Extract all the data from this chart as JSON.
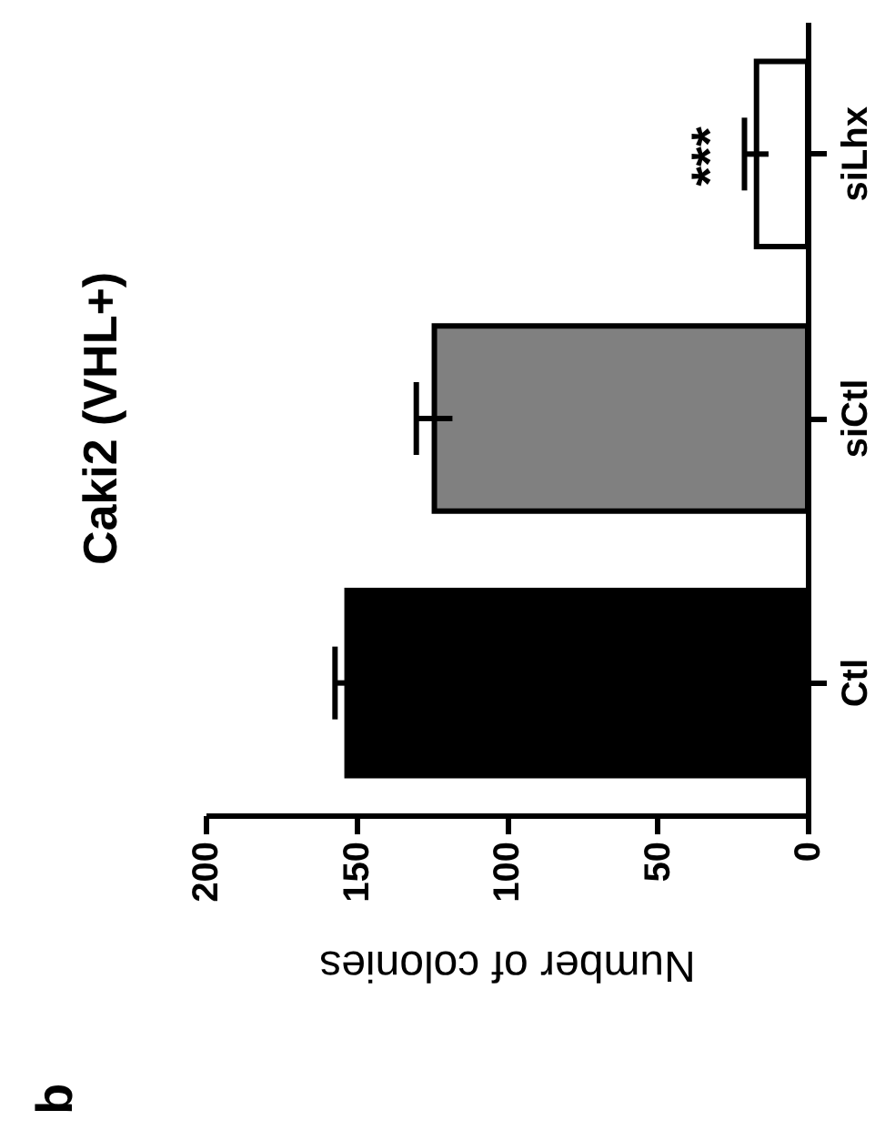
{
  "chart_data": {
    "type": "bar",
    "orientation": "horizontal",
    "title": "Caki2 (VHL+)",
    "xlabel": "Number of colonies",
    "categories": [
      "siLhx",
      "siCtl",
      "Ctl"
    ],
    "values": [
      17,
      124,
      153
    ],
    "colors": [
      "#ffffff",
      "#808080",
      "#000000"
    ],
    "errors": [
      4,
      6,
      4
    ],
    "xlim": [
      200,
      0
    ],
    "xticks": [
      200,
      150,
      100,
      50,
      0
    ],
    "annotations": [
      "***",
      "b"
    ]
  }
}
